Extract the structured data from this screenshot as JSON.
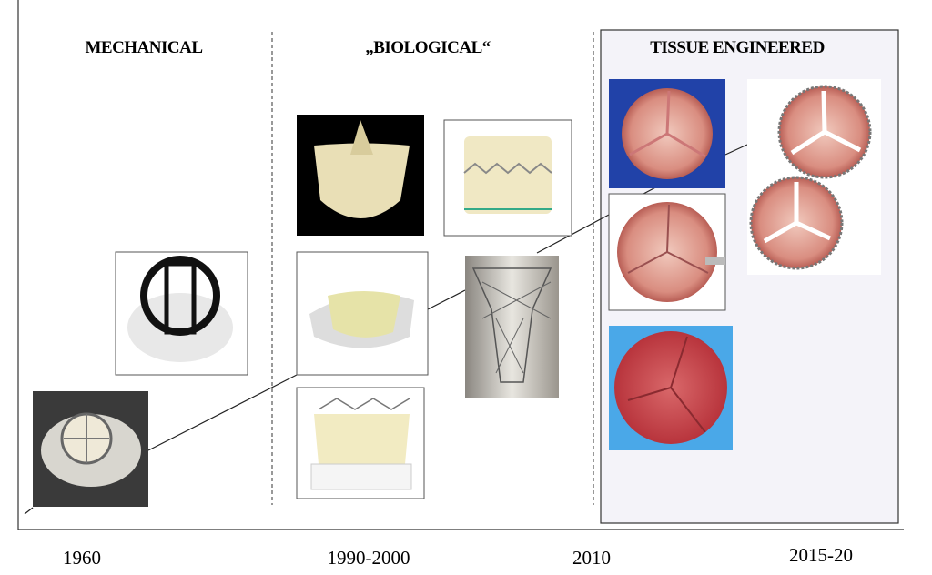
{
  "sections": [
    {
      "title": "MECHANICAL"
    },
    {
      "title": "„BIOLOGICAL“"
    },
    {
      "title": "TISSUE ENGINEERED"
    }
  ],
  "timeline": {
    "labels": [
      "1960",
      "1990-2000",
      "2010",
      "2015-20"
    ]
  }
}
